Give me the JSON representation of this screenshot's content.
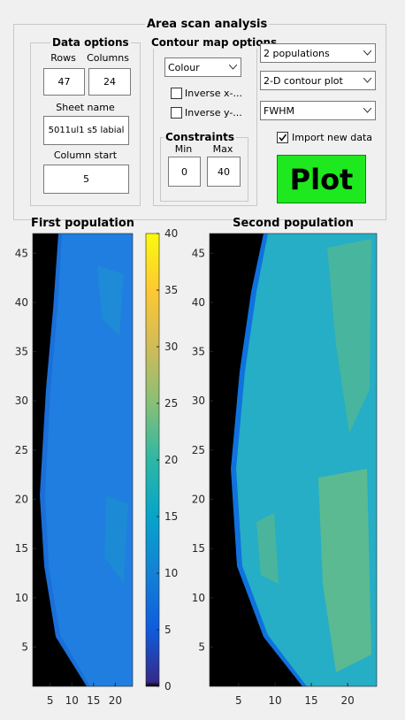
{
  "app": {
    "title": "Area scan analysis",
    "data_options": {
      "title": "Data options",
      "rows_label": "Rows",
      "rows_value": "47",
      "columns_label": "Columns",
      "columns_value": "24",
      "sheet_name_label": "Sheet name",
      "sheet_name_value": "5011ul1 s5 labial",
      "column_start_label": "Column start",
      "column_start_value": "5"
    },
    "contour_options": {
      "title": "Contour map options",
      "colour": "Colour",
      "inverse_x": "Inverse x-...",
      "inverse_y": "Inverse y-..."
    },
    "constraints": {
      "title": "Constraints",
      "min_label": "Min",
      "min_value": "0",
      "max_label": "Max",
      "max_value": "40"
    },
    "dropdowns": [
      "2 populations",
      "2-D contour plot",
      "FWHM"
    ],
    "import_new_data": "Import new data",
    "plot_button": "Plot"
  },
  "chart_data": [
    {
      "type": "contour",
      "title": "First population",
      "xlim": [
        1,
        24
      ],
      "ylim": [
        1,
        47
      ],
      "xticks": [
        5,
        10,
        15,
        20
      ],
      "yticks": [
        5,
        10,
        15,
        20,
        25,
        30,
        35,
        40,
        45
      ]
    },
    {
      "type": "colorbar",
      "ylim": [
        0,
        40
      ],
      "yticks": [
        0,
        5,
        10,
        15,
        20,
        25,
        30,
        35,
        40
      ]
    },
    {
      "type": "contour",
      "title": "Second population",
      "xlim": [
        1,
        24
      ],
      "ylim": [
        1,
        47
      ],
      "xticks": [
        5,
        10,
        15,
        20
      ],
      "yticks": [
        5,
        10,
        15,
        20,
        25,
        30,
        35,
        40,
        45
      ]
    }
  ]
}
